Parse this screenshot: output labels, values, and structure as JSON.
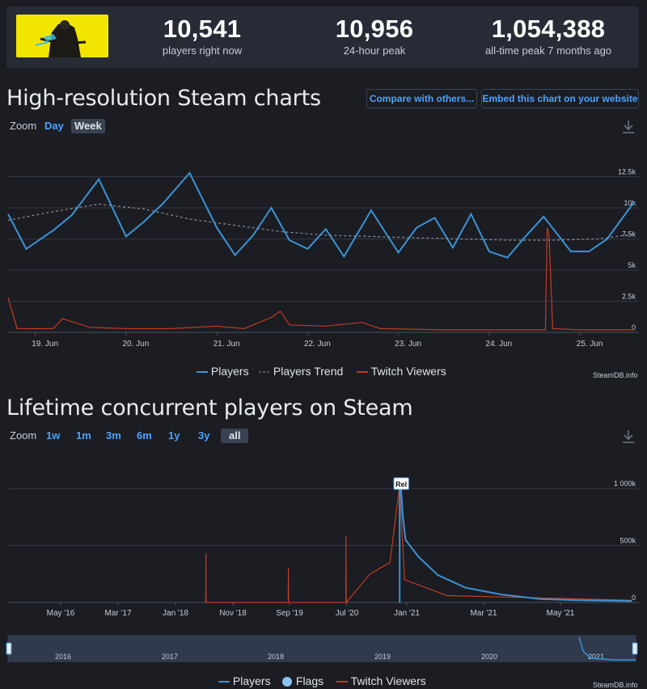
{
  "stats": [
    {
      "value": "10,541",
      "label": "players right now"
    },
    {
      "value": "10,956",
      "label": "24-hour peak"
    },
    {
      "value": "1,054,388",
      "label": "all-time peak 7 months ago"
    }
  ],
  "highres": {
    "title": "High-resolution Steam charts",
    "compare_label": "Compare with others...",
    "embed_label": "Embed this chart on your website",
    "zoom_label": "Zoom",
    "zoom_options": [
      "Day",
      "Week"
    ],
    "zoom_selected": "Week",
    "legend": [
      {
        "name": "Players",
        "color": "#3a93d6",
        "style": "solid"
      },
      {
        "name": "Players Trend",
        "color": "#8a8f98",
        "style": "dashed"
      },
      {
        "name": "Twitch Viewers",
        "color": "#c23b22",
        "style": "solid"
      }
    ],
    "credit": "SteamDB.info"
  },
  "lifetime": {
    "title": "Lifetime concurrent players on Steam",
    "zoom_label": "Zoom",
    "zoom_options": [
      "1w",
      "1m",
      "3m",
      "6m",
      "1y",
      "3y",
      "all"
    ],
    "zoom_selected": "all",
    "flag_label": "Rel",
    "navigator_years": [
      "2016",
      "2017",
      "2018",
      "2019",
      "2020",
      "2021"
    ],
    "legend": [
      {
        "name": "Players",
        "color": "#3a93d6",
        "style": "solid"
      },
      {
        "name": "Flags",
        "color": "#8cc4f0",
        "style": "dot"
      },
      {
        "name": "Twitch Viewers",
        "color": "#c23b22",
        "style": "solid"
      }
    ],
    "credit": "SteamDB.info"
  },
  "chart_data": [
    {
      "type": "line",
      "x_ticks": [
        "19. Jun",
        "20. Jun",
        "21. Jun",
        "22. Jun",
        "23. Jun",
        "24. Jun",
        "25. Jun"
      ],
      "y_ticks": [
        "12.5k",
        "10k",
        "7.5k",
        "5k",
        "2.5k",
        "0"
      ],
      "ylim": [
        0,
        15000
      ],
      "grid": true,
      "series": [
        {
          "name": "Players",
          "points": [
            [
              18.7,
              9500
            ],
            [
              18.9,
              6700
            ],
            [
              19.2,
              8200
            ],
            [
              19.4,
              9400
            ],
            [
              19.7,
              12300
            ],
            [
              20.0,
              7700
            ],
            [
              20.2,
              8900
            ],
            [
              20.4,
              10300
            ],
            [
              20.7,
              12800
            ],
            [
              21.0,
              8400
            ],
            [
              21.2,
              6200
            ],
            [
              21.4,
              7800
            ],
            [
              21.6,
              10000
            ],
            [
              21.8,
              7400
            ],
            [
              22.0,
              6700
            ],
            [
              22.2,
              8300
            ],
            [
              22.4,
              6100
            ],
            [
              22.7,
              9800
            ],
            [
              23.0,
              6400
            ],
            [
              23.2,
              8400
            ],
            [
              23.4,
              9200
            ],
            [
              23.6,
              6800
            ],
            [
              23.8,
              9500
            ],
            [
              24.0,
              6500
            ],
            [
              24.2,
              6000
            ],
            [
              24.4,
              7700
            ],
            [
              24.6,
              9300
            ],
            [
              24.9,
              6500
            ],
            [
              25.1,
              6500
            ],
            [
              25.3,
              7500
            ],
            [
              25.6,
              10500
            ]
          ]
        },
        {
          "name": "Players Trend",
          "points": [
            [
              18.7,
              9000
            ],
            [
              19.2,
              9700
            ],
            [
              19.7,
              10300
            ],
            [
              20.2,
              9900
            ],
            [
              20.7,
              9100
            ],
            [
              21.2,
              8600
            ],
            [
              21.7,
              8100
            ],
            [
              22.2,
              7800
            ],
            [
              22.7,
              7700
            ],
            [
              23.2,
              7600
            ],
            [
              23.7,
              7500
            ],
            [
              24.2,
              7400
            ],
            [
              24.7,
              7400
            ],
            [
              25.2,
              7500
            ],
            [
              25.6,
              7900
            ]
          ]
        },
        {
          "name": "Twitch Viewers",
          "points": [
            [
              18.7,
              2800
            ],
            [
              18.8,
              300
            ],
            [
              19.2,
              300
            ],
            [
              19.3,
              1100
            ],
            [
              19.6,
              400
            ],
            [
              20.0,
              300
            ],
            [
              20.5,
              300
            ],
            [
              21.0,
              500
            ],
            [
              21.3,
              300
            ],
            [
              21.6,
              1200
            ],
            [
              21.7,
              1700
            ],
            [
              21.8,
              600
            ],
            [
              22.2,
              500
            ],
            [
              22.6,
              800
            ],
            [
              22.8,
              300
            ],
            [
              23.5,
              200
            ],
            [
              24.0,
              200
            ],
            [
              24.5,
              200
            ],
            [
              24.62,
              200
            ],
            [
              24.64,
              8400
            ],
            [
              24.66,
              7800
            ],
            [
              24.7,
              300
            ],
            [
              25.0,
              200
            ],
            [
              25.6,
              200
            ]
          ]
        }
      ]
    },
    {
      "type": "line",
      "x_ticks": [
        "May '16",
        "Mar '17",
        "Jan '18",
        "Nov '18",
        "Sep '19",
        "Jul '20",
        "Jan '21",
        "Mar '21",
        "May '21"
      ],
      "y_ticks": [
        "1 000k",
        "500k",
        "0"
      ],
      "ylim": [
        0,
        1100000
      ],
      "grid": true,
      "series": [
        {
          "name": "Players",
          "points": [
            [
              "2020-12-10",
              0
            ],
            [
              "2020-12-10",
              1054388
            ],
            [
              "2020-12-14",
              1000000
            ],
            [
              "2020-12-20",
              750000
            ],
            [
              "2020-12-28",
              550000
            ],
            [
              "2021-01-10",
              400000
            ],
            [
              "2021-01-25",
              240000
            ],
            [
              "2021-02-15",
              130000
            ],
            [
              "2021-03-15",
              70000
            ],
            [
              "2021-04-15",
              30000
            ],
            [
              "2021-05-15",
              20000
            ],
            [
              "2021-06-25",
              12000
            ]
          ]
        },
        {
          "name": "Twitch Viewers",
          "points": [
            [
              "2018-06-10",
              0
            ],
            [
              "2018-06-11",
              430000
            ],
            [
              "2018-06-12",
              0
            ],
            [
              "2019-08-25",
              0
            ],
            [
              "2019-08-26",
              300000
            ],
            [
              "2019-08-27",
              0
            ],
            [
              "2020-06-25",
              0
            ],
            [
              "2020-06-26",
              590000
            ],
            [
              "2020-06-27",
              0
            ],
            [
              "2020-09-10",
              250000
            ],
            [
              "2020-10-10",
              300000
            ],
            [
              "2020-11-10",
              350000
            ],
            [
              "2020-12-10",
              1030000
            ],
            [
              "2020-12-25",
              200000
            ],
            [
              "2021-02-01",
              60000
            ],
            [
              "2021-06-25",
              20000
            ]
          ]
        }
      ]
    }
  ]
}
